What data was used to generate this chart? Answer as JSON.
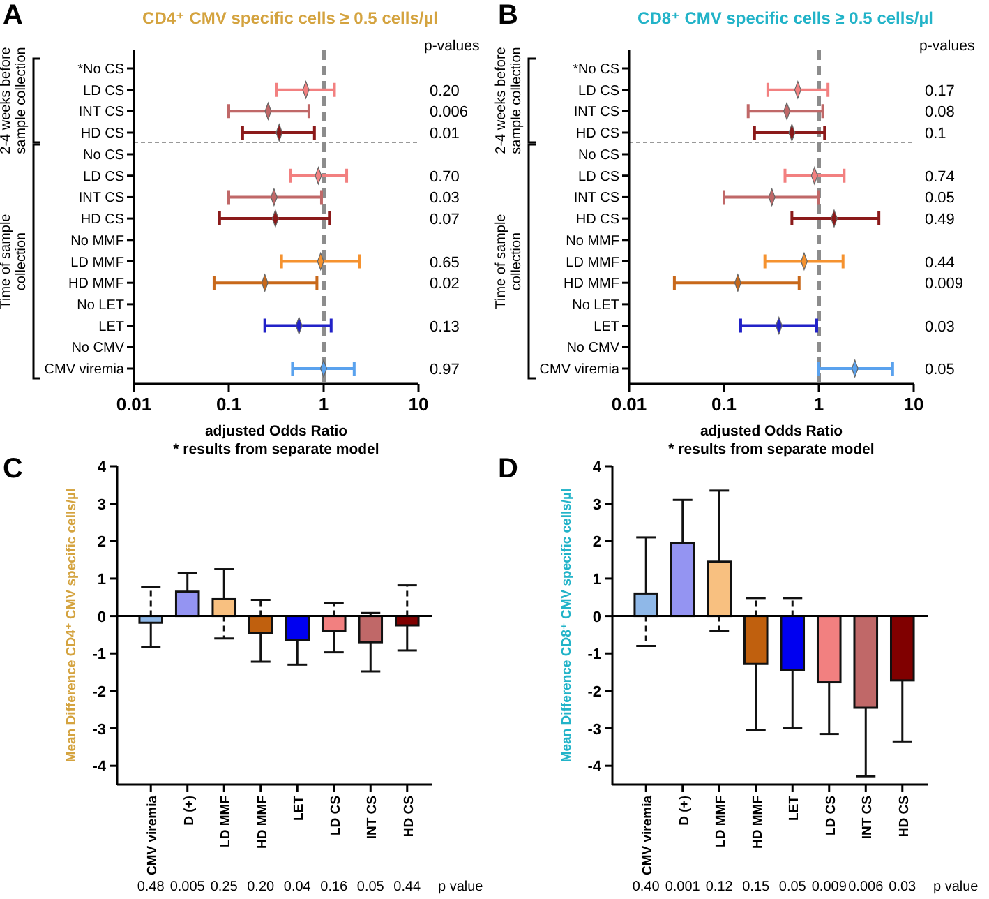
{
  "chart_data": [
    {
      "type": "scatter",
      "orientation": "horizontal",
      "title": "CD4⁺ CMV specific cells  ≥ 0.5 cells/µl",
      "log": "x",
      "xlim": [
        0.01,
        10
      ],
      "tick_labels": "y",
      "categories": [
        "*No CS",
        "LD CS",
        "INT CS",
        "HD CS"
      ],
      "series": [
        {
          "colors": [
            null,
            "#f28080",
            "#c06868",
            "#8b1a1a"
          ],
          "values": [
            null,
            0.65,
            0.26,
            0.34
          ],
          "errors": [
            null,
            [
              0.32,
              1.3
            ],
            [
              0.1,
              0.7
            ],
            [
              0.14,
              0.8
            ]
          ]
        }
      ],
      "ref_lines": [
        {
          "axis": "x",
          "value": 1,
          "color": "#8c8c8c",
          "line_style": "dashed"
        }
      ],
      "annotations": [
        "A",
        "p-values",
        "2-4 weeks before sample collection",
        "0.20",
        "0.006",
        "0.01"
      ]
    },
    {
      "type": "scatter",
      "orientation": "horizontal",
      "xlabel": "adjusted Odds Ratio",
      "log": "x",
      "xlim": [
        0.01,
        10
      ],
      "xticks": [
        0.01,
        0.1,
        1,
        10
      ],
      "categories": [
        "No CS",
        "LD CS",
        "INT CS",
        "HD CS",
        "No MMF",
        "LD MMF",
        "HD MMF",
        "No LET",
        "LET",
        "No CMV",
        "CMV viremia"
      ],
      "series": [
        {
          "colors": [
            null,
            "#f28080",
            "#c06868",
            "#8b1a1a",
            null,
            "#f5922f",
            "#c8681a",
            null,
            "#2222c8",
            null,
            "#5aa2ee"
          ],
          "values": [
            null,
            0.88,
            0.3,
            0.31,
            null,
            0.93,
            0.24,
            null,
            0.55,
            null,
            1.0
          ],
          "errors": [
            null,
            [
              0.45,
              1.75
            ],
            [
              0.1,
              0.95
            ],
            [
              0.08,
              1.15
            ],
            null,
            [
              0.36,
              2.4
            ],
            [
              0.07,
              0.85
            ],
            null,
            [
              0.24,
              1.2
            ],
            null,
            [
              0.47,
              2.1
            ]
          ]
        }
      ],
      "ref_lines": [
        {
          "axis": "x",
          "value": 1,
          "color": "#8c8c8c",
          "line_style": "dashed"
        }
      ],
      "annotations": [
        "* results from separate model",
        "Time of sample collection",
        "0.70",
        "0.03",
        "0.07",
        "0.65",
        "0.02",
        "0.13",
        "0.97"
      ]
    },
    {
      "type": "scatter",
      "orientation": "horizontal",
      "title": "CD8⁺ CMV specific cells  ≥ 0.5 cells/µl",
      "log": "x",
      "xlim": [
        0.01,
        10
      ],
      "tick_labels": "y",
      "categories": [
        "*No CS",
        "LD CS",
        "INT CS",
        "HD CS"
      ],
      "series": [
        {
          "colors": [
            null,
            "#f28080",
            "#c06868",
            "#8b1a1a"
          ],
          "values": [
            null,
            0.6,
            0.46,
            0.52
          ],
          "errors": [
            null,
            [
              0.29,
              1.25
            ],
            [
              0.18,
              1.1
            ],
            [
              0.21,
              1.15
            ]
          ]
        }
      ],
      "ref_lines": [
        {
          "axis": "x",
          "value": 1,
          "color": "#8c8c8c",
          "line_style": "dashed"
        }
      ],
      "annotations": [
        "B",
        "p-values",
        "2-4 weeks before sample collection",
        "0.17",
        "0.08",
        "0.1"
      ]
    },
    {
      "type": "scatter",
      "orientation": "horizontal",
      "xlabel": "adjusted Odds Ratio",
      "log": "x",
      "xlim": [
        0.01,
        10
      ],
      "xticks": [
        0.01,
        0.1,
        1,
        10
      ],
      "categories": [
        "No CS",
        "LD CS",
        "INT CS",
        "HD CS",
        "No MMF",
        "LD MMF",
        "HD MMF",
        "No LET",
        "LET",
        "No CMV",
        "CMV viremia"
      ],
      "series": [
        {
          "colors": [
            null,
            "#f28080",
            "#c06868",
            "#8b1a1a",
            null,
            "#f5922f",
            "#c8681a",
            null,
            "#2222c8",
            null,
            "#5aa2ee"
          ],
          "values": [
            null,
            0.9,
            0.32,
            1.45,
            null,
            0.7,
            0.14,
            null,
            0.38,
            null,
            2.4
          ],
          "errors": [
            null,
            [
              0.44,
              1.85
            ],
            [
              0.1,
              1.0
            ],
            [
              0.52,
              4.3
            ],
            null,
            [
              0.27,
              1.8
            ],
            [
              0.03,
              0.62
            ],
            null,
            [
              0.15,
              0.95
            ],
            null,
            [
              1.0,
              6.0
            ]
          ]
        }
      ],
      "ref_lines": [
        {
          "axis": "x",
          "value": 1,
          "color": "#8c8c8c",
          "line_style": "dashed"
        }
      ],
      "annotations": [
        "* results from separate model",
        "Time of sample collection",
        "0.74",
        "0.05",
        "0.49",
        "0.44",
        "0.009",
        "0.03",
        "0.05"
      ]
    },
    {
      "type": "bar",
      "ylabel": "Mean Difference CD4⁺ CMV specific cells/µl",
      "ylim": [
        -4.5,
        4
      ],
      "yticks": [
        -4,
        -3,
        -2,
        -1,
        0,
        1,
        2,
        3,
        4
      ],
      "categories": [
        "CMV viremia",
        "D (+)",
        "LD MMF",
        "HD MMF",
        "LET",
        "LD CS",
        "INT CS",
        "HD CS"
      ],
      "series": [
        {
          "colors": [
            "#8fb8e8",
            "#9494f2",
            "#f8c080",
            "#c0600e",
            "#0000f0",
            "#f28080",
            "#c06868",
            "#800000"
          ],
          "values": [
            -0.18,
            0.65,
            0.45,
            -0.45,
            -0.65,
            -0.4,
            -0.7,
            -0.25
          ],
          "errors": [
            [
              -0.83,
              0.77
            ],
            [
              0.65,
              1.15
            ],
            [
              -0.6,
              1.25
            ],
            [
              -1.22,
              0.43
            ],
            [
              -1.3,
              -0.65
            ],
            [
              -0.97,
              0.35
            ],
            [
              -1.48,
              0.08
            ],
            [
              -0.92,
              0.82
            ]
          ]
        }
      ],
      "annotations": [
        "C",
        "0.48",
        "0.005",
        "0.25",
        "0.20",
        "0.04",
        "0.16",
        "0.05",
        "0.44",
        "p value"
      ]
    },
    {
      "type": "bar",
      "ylabel": "Mean Difference CD8⁺ CMV specific cells/µl",
      "ylim": [
        -4.5,
        4
      ],
      "yticks": [
        -4,
        -3,
        -2,
        -1,
        0,
        1,
        2,
        3,
        4
      ],
      "categories": [
        "CMV viremia",
        "D (+)",
        "LD MMF",
        "HD MMF",
        "LET",
        "LD CS",
        "INT CS",
        "HD CS"
      ],
      "series": [
        {
          "colors": [
            "#8fb8e8",
            "#9494f2",
            "#f8c080",
            "#c0600e",
            "#0000f0",
            "#f28080",
            "#c06868",
            "#800000"
          ],
          "values": [
            0.6,
            1.95,
            1.45,
            -1.28,
            -1.45,
            -1.77,
            -2.45,
            -1.72
          ],
          "errors": [
            [
              -0.8,
              2.1
            ],
            [
              1.95,
              3.1
            ],
            [
              -0.4,
              3.35
            ],
            [
              -3.05,
              0.48
            ],
            [
              -3.0,
              0.48
            ],
            [
              -3.15,
              -1.77
            ],
            [
              -4.28,
              -2.45
            ],
            [
              -3.35,
              -1.72
            ]
          ]
        }
      ],
      "annotations": [
        "D",
        "0.40",
        "0.001",
        "0.12",
        "0.15",
        "0.05",
        "0.009",
        "0.006",
        "0.03",
        "p value"
      ]
    }
  ]
}
